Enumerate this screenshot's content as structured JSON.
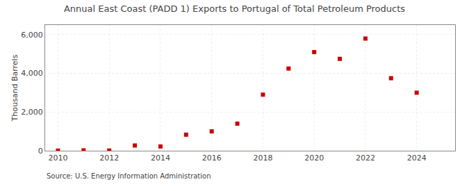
{
  "chart_data": {
    "type": "scatter",
    "title": "Annual East Coast (PADD 1) Exports to Portugal of Total Petroleum Products",
    "ylabel": "Thousand Barrels",
    "annotations": [
      {
        "text": "Source: U.S. Energy Information Administration"
      }
    ],
    "x": [
      2010,
      2011,
      2012,
      2013,
      2014,
      2015,
      2016,
      2017,
      2018,
      2019,
      2020,
      2021,
      2022,
      2023,
      2024
    ],
    "values": [
      5,
      20,
      10,
      270,
      220,
      830,
      1000,
      1400,
      2900,
      4250,
      5100,
      4750,
      5800,
      3750,
      3000
    ],
    "color": "#cc0000",
    "marker": "square",
    "xlim": [
      2009.5,
      2025.5
    ],
    "xticks": [
      2010,
      2012,
      2014,
      2016,
      2018,
      2020,
      2022,
      2024
    ],
    "ylim": [
      0,
      6500
    ],
    "yticks": [
      0,
      {
        "value": 2000,
        "label": "2,000"
      },
      {
        "value": 4000,
        "label": "4,000"
      },
      {
        "value": 6000,
        "label": "6,000"
      }
    ],
    "grid": true
  }
}
